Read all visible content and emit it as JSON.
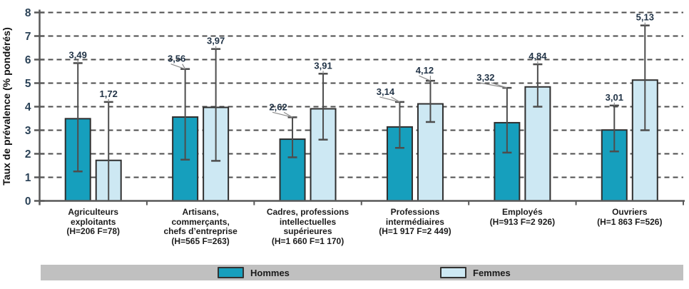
{
  "chart_data": {
    "type": "bar",
    "title": "",
    "ylabel": "Taux de prévalence (% pondérés)",
    "ylim": [
      0,
      8
    ],
    "yticks": [
      0,
      1,
      2,
      3,
      4,
      5,
      6,
      7,
      8
    ],
    "grid": "horizontal-dashed",
    "colors": {
      "hommes": "#169fbd",
      "femmes": "#cde8f3",
      "bar_border": "#2f2f2f",
      "error_bar": "#4d4d4d",
      "gridline": "#4d4d4d",
      "axis": "#595959",
      "tick_text": "#2b4257",
      "value_text": "#223447",
      "category_text": "#1c1c1c",
      "legend_bg": "#c0c0c0"
    },
    "categories": [
      {
        "lines": [
          "Agriculteurs",
          "exploitants",
          "(H=206 F=78)"
        ]
      },
      {
        "lines": [
          "Artisans,",
          "commerçants,",
          "chefs d’entreprise",
          "(H=565 F=263)"
        ]
      },
      {
        "lines": [
          "Cadres, professions",
          "intellectuelles",
          "supérieures",
          "(H=1 660 F=1 170)"
        ]
      },
      {
        "lines": [
          "Professions",
          "intermédiaires",
          "(H=1 917 F=2 449)"
        ]
      },
      {
        "lines": [
          "Employés",
          "(H=913 F=2 926)"
        ]
      },
      {
        "lines": [
          "Ouvriers",
          "(H=1 863 F=526)"
        ]
      }
    ],
    "series": [
      {
        "name": "Hommes",
        "values": [
          3.49,
          3.56,
          2.62,
          3.14,
          3.32,
          3.01
        ],
        "value_labels": [
          "3,49",
          "3,56",
          "2,62",
          "3,14",
          "3,32",
          "3,01"
        ],
        "ci_low": [
          1.25,
          1.75,
          1.85,
          2.25,
          2.05,
          2.1
        ],
        "ci_high": [
          5.85,
          5.6,
          3.55,
          4.2,
          4.8,
          4.05
        ],
        "ci_low_cap": [
          true,
          true,
          true,
          true,
          true,
          true
        ],
        "label_dx": [
          0,
          -12,
          -20,
          -20,
          -30,
          0
        ]
      },
      {
        "name": "Femmes",
        "values": [
          1.72,
          3.97,
          3.91,
          4.12,
          4.84,
          5.13
        ],
        "value_labels": [
          "1,72",
          "3,97",
          "3,91",
          "4,12",
          "4,84",
          "5,13"
        ],
        "ci_low": [
          0.0,
          1.7,
          2.6,
          3.35,
          4.0,
          3.0
        ],
        "ci_high": [
          4.2,
          6.45,
          5.4,
          5.1,
          5.8,
          7.45
        ],
        "ci_low_cap": [
          false,
          true,
          true,
          true,
          true,
          true
        ],
        "label_dx": [
          0,
          0,
          0,
          -8,
          0,
          0
        ]
      }
    ],
    "legend": {
      "position": "bottom-bar",
      "entries": [
        {
          "name": "Hommes",
          "color": "#169fbd"
        },
        {
          "name": "Femmes",
          "color": "#cde8f3"
        }
      ]
    }
  }
}
